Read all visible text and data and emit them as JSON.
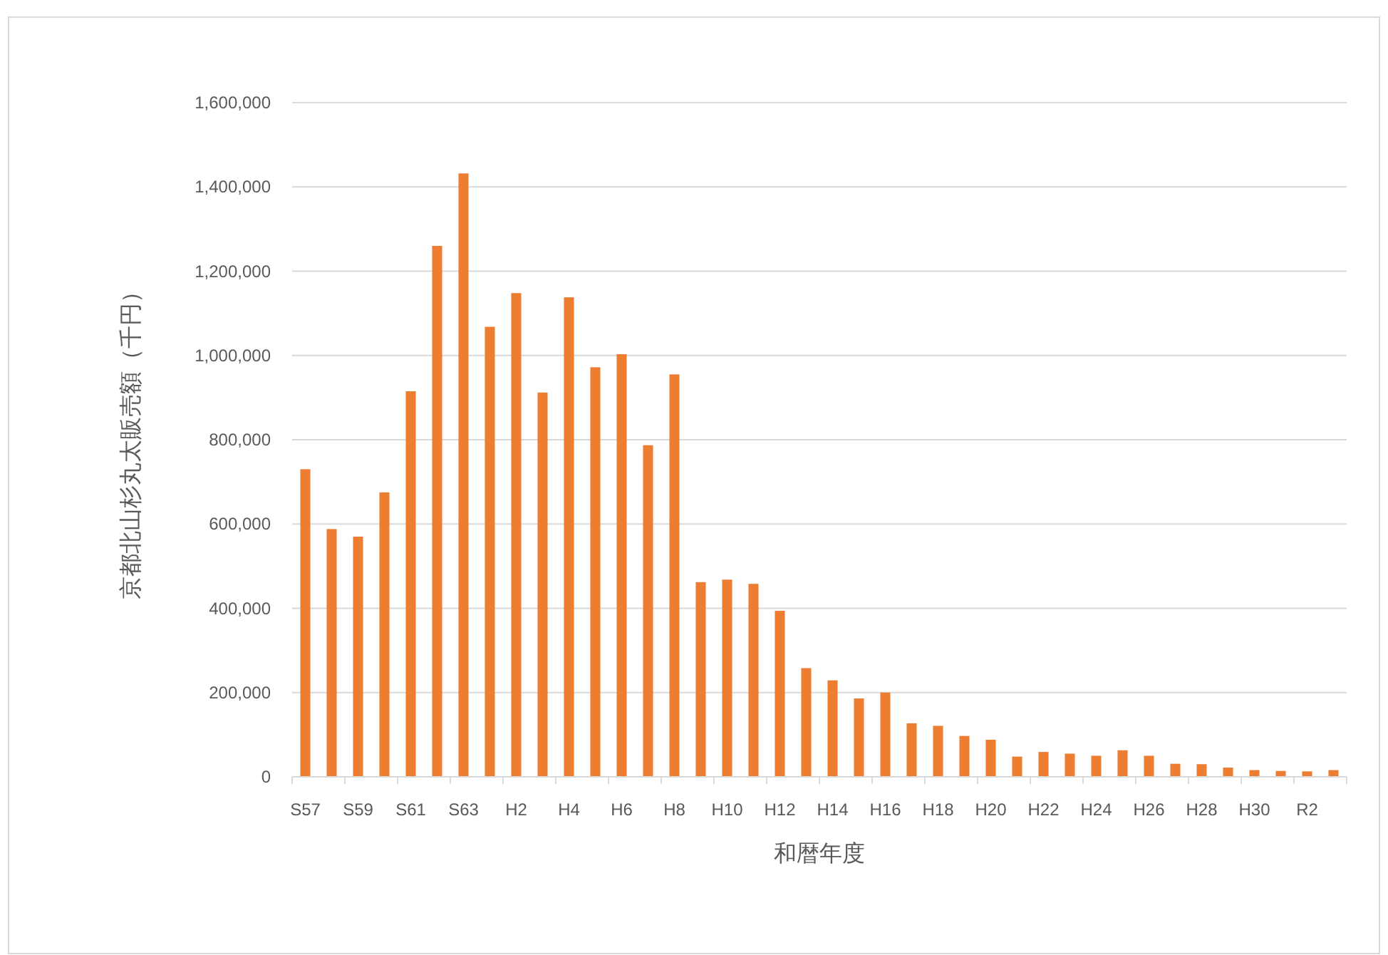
{
  "chart_data": {
    "type": "bar",
    "xlabel": "和暦年度",
    "ylabel": "京都北山杉丸太販売額（千円）",
    "categories": [
      "S57",
      null,
      "S59",
      null,
      "S61",
      null,
      "S63",
      null,
      "H2",
      null,
      "H4",
      null,
      "H6",
      null,
      "H8",
      null,
      "H10",
      null,
      "H12",
      null,
      "H14",
      null,
      "H16",
      null,
      "H18",
      null,
      "H20",
      null,
      "H22",
      null,
      "H24",
      null,
      "H26",
      null,
      "H28",
      null,
      "H30",
      null,
      "R2",
      null
    ],
    "values": [
      730000,
      588000,
      570000,
      675000,
      915000,
      1260000,
      1432000,
      1068000,
      1148000,
      912000,
      1138000,
      972000,
      1003000,
      787000,
      955000,
      462000,
      468000,
      458000,
      394000,
      258000,
      229000,
      186000,
      200000,
      127000,
      121000,
      97000,
      88000,
      48000,
      59000,
      55000,
      50000,
      63000,
      50000,
      31000,
      30000,
      22000,
      16000,
      14000,
      13000,
      16000
    ],
    "color": "#ed7d31",
    "ylim": [
      0,
      1600000
    ],
    "yticks": [
      {
        "value": 0,
        "label": "0"
      },
      {
        "value": 200000,
        "label": "200,000"
      },
      {
        "value": 400000,
        "label": "400,000"
      },
      {
        "value": 600000,
        "label": "600,000"
      },
      {
        "value": 800000,
        "label": "800,000"
      },
      {
        "value": 1000000,
        "label": "1,000,000"
      },
      {
        "value": 1200000,
        "label": "1,200,000"
      },
      {
        "value": 1400000,
        "label": "1,400,000"
      },
      {
        "value": 1600000,
        "label": "1,600,000"
      }
    ],
    "grid": "y"
  }
}
